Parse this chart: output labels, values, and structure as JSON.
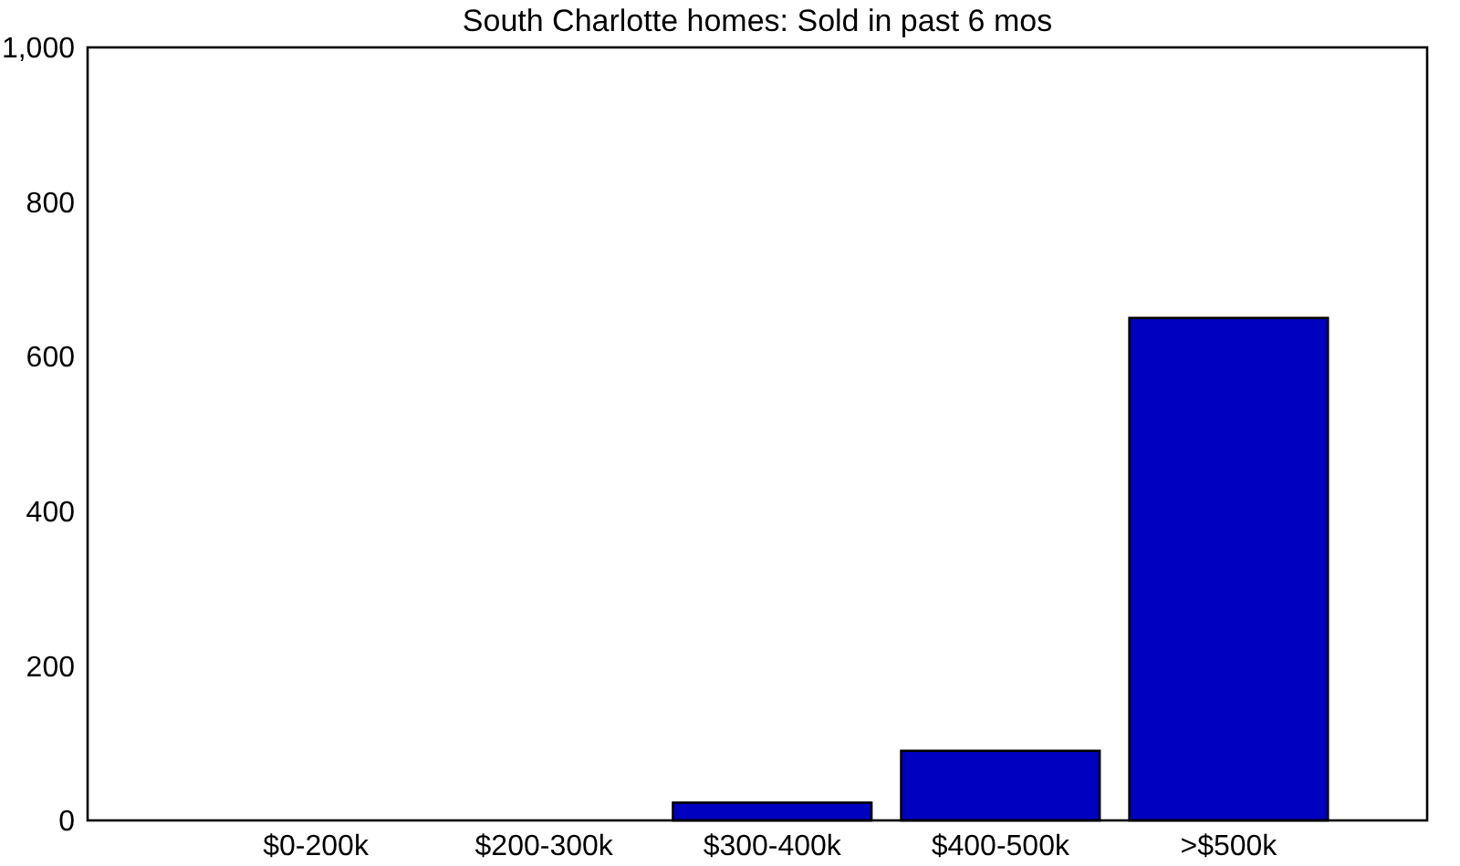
{
  "chart_data": {
    "type": "bar",
    "title": "South Charlotte homes: Sold in past 6 mos",
    "categories": [
      "$0-200k",
      "$200-300k",
      "$300-400k",
      "$400-500k",
      ">$500k"
    ],
    "values": [
      0,
      0,
      23,
      90,
      650
    ],
    "color": "#0000c0",
    "ylim": [
      0,
      1000
    ],
    "yticks": [
      0,
      200,
      400,
      600,
      800,
      {
        "value": 1000,
        "label": "1,000"
      }
    ],
    "grid": false
  }
}
